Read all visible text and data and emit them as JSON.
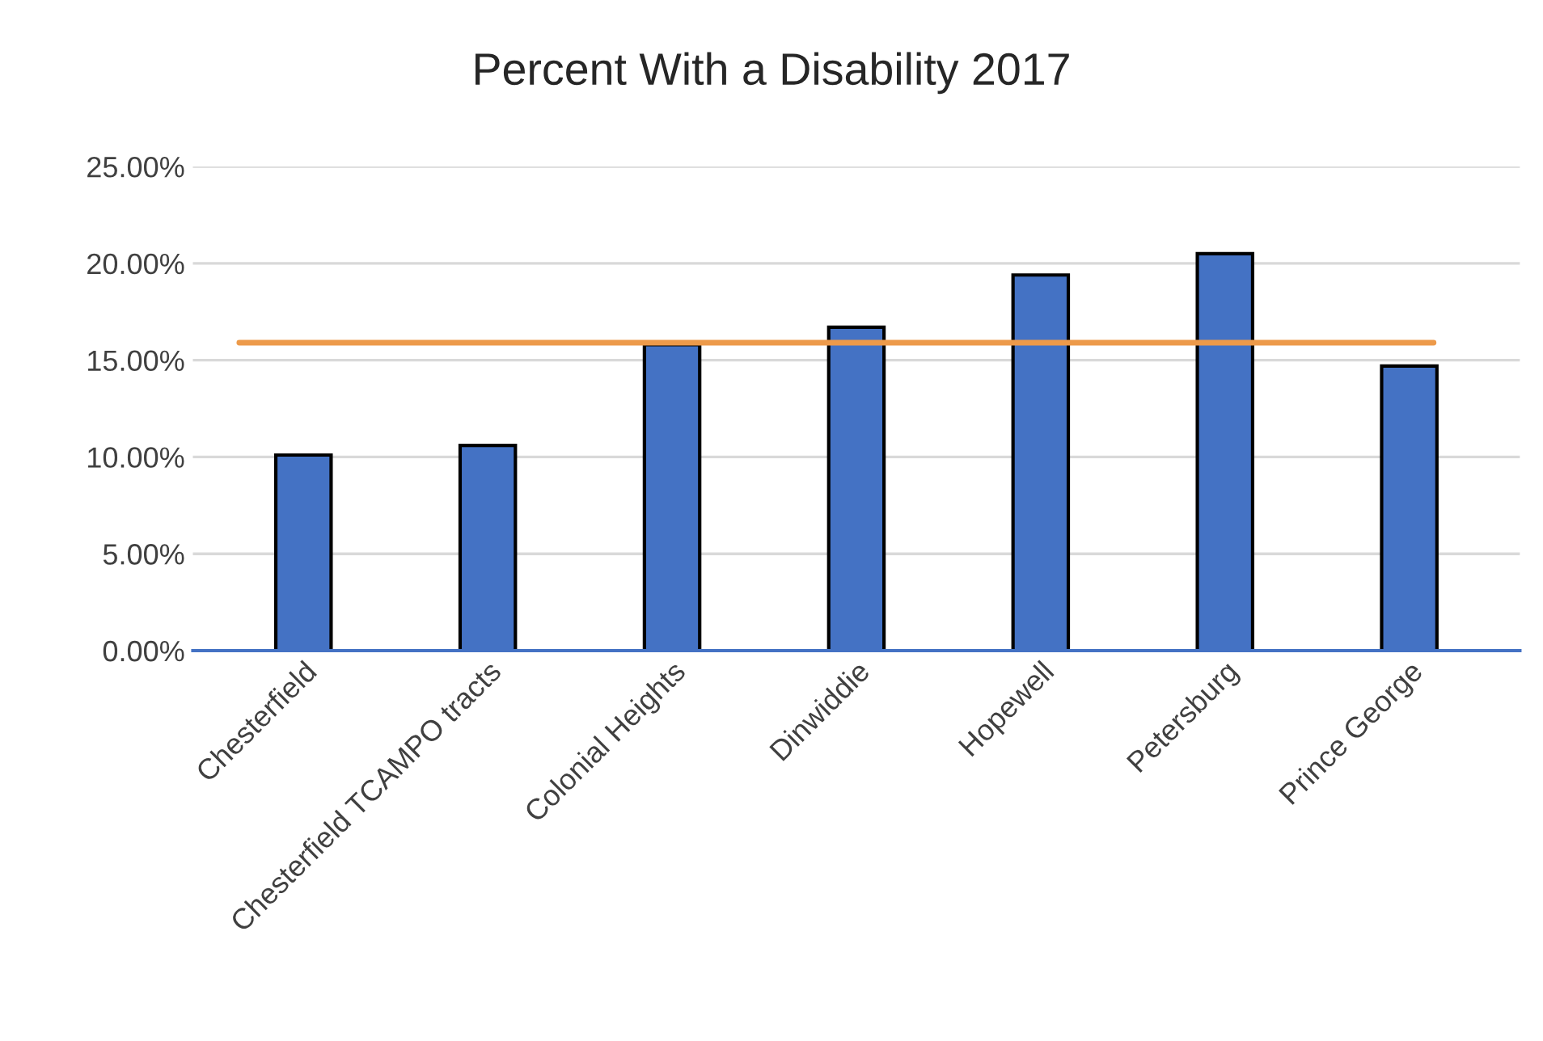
{
  "chart_data": {
    "type": "bar",
    "title": "Percent With a Disability 2017",
    "categories": [
      "Chesterfield",
      "Chesterfield TCAMPO tracts",
      "Colonial Heights",
      "Dinwiddie",
      "Hopewell",
      "Petersburg",
      "Prince George"
    ],
    "values": [
      10.1,
      10.6,
      15.8,
      16.7,
      19.4,
      20.5,
      14.7
    ],
    "color": "#4472c4",
    "ylim": [
      0,
      25
    ],
    "yticks": [
      {
        "value": 0,
        "label": "0.00%"
      },
      {
        "value": 5,
        "label": "5.00%"
      },
      {
        "value": 10,
        "label": "10.00%"
      },
      {
        "value": 15,
        "label": "15.00%"
      },
      {
        "value": 20,
        "label": "20.00%"
      },
      {
        "value": 25,
        "label": "25.00%"
      }
    ],
    "grid": "y",
    "ref_lines": [
      {
        "axis": "y",
        "value": 15.9,
        "label": null,
        "color": "#ed9a4a"
      }
    ]
  }
}
